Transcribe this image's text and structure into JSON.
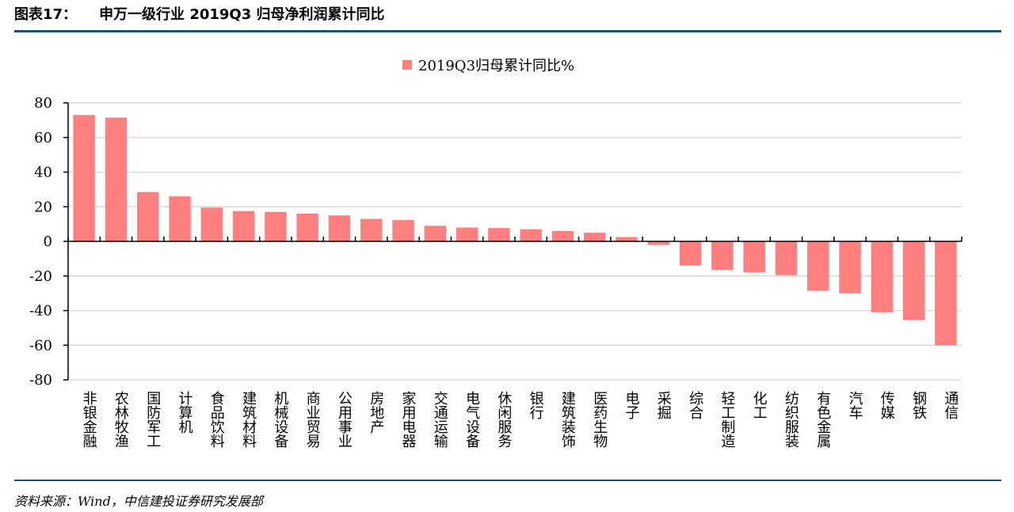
{
  "header": {
    "figure_no": "图表17：",
    "title": "申万一级行业 2019Q3 归母净利润累计同比"
  },
  "source": "资料来源：Wind，中信建投证券研究发展部",
  "colors": {
    "bar": "#FF7F7F",
    "rule": "#1F4E79",
    "grid": "#D9D9D9",
    "axis": "#000000"
  },
  "chart_data": {
    "type": "bar",
    "categories": [
      "非银金融",
      "农林牧渔",
      "国防军工",
      "计算机",
      "食品饮料",
      "建筑材料",
      "机械设备",
      "商业贸易",
      "公用事业",
      "房地产",
      "家用电器",
      "交通运输",
      "电气设备",
      "休闲服务",
      "银行",
      "建筑装饰",
      "医药生物",
      "电子",
      "采掘",
      "综合",
      "轻工制造",
      "化工",
      "纺织服装",
      "有色金属",
      "汽车",
      "传媒",
      "钢铁",
      "通信"
    ],
    "series": [
      {
        "name": "2019Q3归母累计同比%",
        "values": [
          73,
          71.5,
          28.5,
          26,
          19.5,
          17.5,
          17,
          16,
          15,
          13,
          12.3,
          9,
          8,
          7.7,
          7,
          6,
          5,
          2.5,
          -2,
          -14,
          -16.5,
          -18,
          -19.5,
          -28.5,
          -30,
          -41,
          -45.5,
          -60
        ]
      }
    ],
    "ylim": [
      -80,
      80
    ],
    "yticks": [
      "80",
      "60",
      "40",
      "20",
      "0",
      "-20",
      "-40",
      "-60",
      "-80"
    ],
    "grid": true,
    "legend_position": "top-center"
  }
}
